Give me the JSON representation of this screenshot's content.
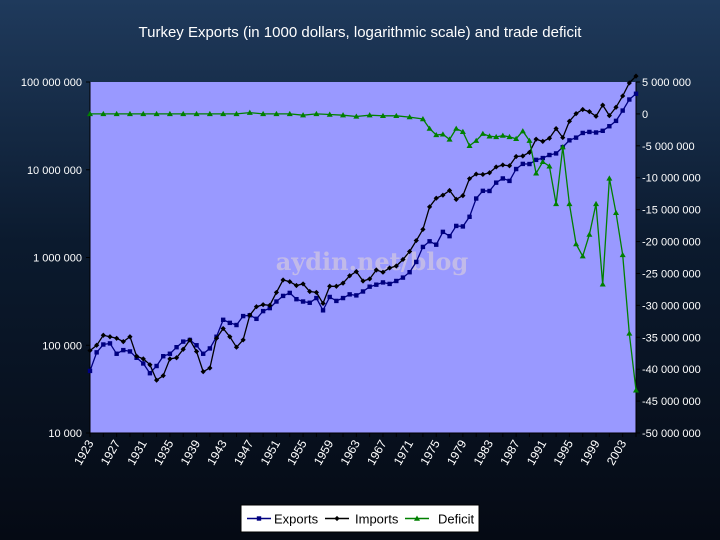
{
  "chart_data": {
    "type": "line",
    "title": "Turkey Exports (in 1000 dollars, logarithmic scale) and trade deficit",
    "watermark": "aydin.net/blog",
    "y_left": {
      "scale": "log",
      "range": [
        10000,
        100000000
      ],
      "ticks": [
        10000,
        100000,
        1000000,
        10000000,
        100000000
      ],
      "tick_labels": [
        "10 000",
        "100 000",
        "1 000 000",
        "10 000 000",
        "100 000 000"
      ]
    },
    "y_right": {
      "scale": "linear",
      "range": [
        -50000000,
        5000000
      ],
      "ticks": [
        5000000,
        0,
        -5000000,
        -10000000,
        -15000000,
        -20000000,
        -25000000,
        -30000000,
        -35000000,
        -40000000,
        -45000000,
        -50000000
      ],
      "tick_labels": [
        "5 000 000",
        "0",
        "-5 000 000",
        "-10 000 000",
        "-15 000 000",
        "-20 000 000",
        "-25 000 000",
        "-30 000 000",
        "-35 000 000",
        "-40 000 000",
        "-45 000 000",
        "-50 000 000"
      ]
    },
    "x_range": [
      1923,
      2005
    ],
    "x_tick_labels": [
      "1923",
      "1927",
      "1931",
      "1935",
      "1939",
      "1943",
      "1947",
      "1951",
      "1955",
      "1959",
      "1963",
      "1967",
      "1971",
      "1975",
      "1979",
      "1983",
      "1987",
      "1991",
      "1995",
      "1999",
      "2003"
    ],
    "grid": false,
    "legend": "bottom",
    "colors": {
      "plot_background": "#9999ff",
      "exports": "#000080",
      "imports": "#000000",
      "deficit": "#008000"
    },
    "series": [
      {
        "name": "Exports",
        "axis": "left",
        "marker": "square",
        "points": [
          [
            1923,
            51000
          ],
          [
            1924,
            83000
          ],
          [
            1925,
            102000
          ],
          [
            1926,
            105000
          ],
          [
            1927,
            80000
          ],
          [
            1928,
            88000
          ],
          [
            1929,
            85000
          ],
          [
            1930,
            72000
          ],
          [
            1931,
            62000
          ],
          [
            1932,
            48000
          ],
          [
            1933,
            58000
          ],
          [
            1934,
            75000
          ],
          [
            1935,
            80000
          ],
          [
            1936,
            95000
          ],
          [
            1937,
            110000
          ],
          [
            1938,
            115000
          ],
          [
            1939,
            100000
          ],
          [
            1940,
            80000
          ],
          [
            1941,
            92000
          ],
          [
            1942,
            125000
          ],
          [
            1943,
            195000
          ],
          [
            1944,
            180000
          ],
          [
            1945,
            170000
          ],
          [
            1946,
            215000
          ],
          [
            1947,
            220000
          ],
          [
            1948,
            200000
          ],
          [
            1949,
            245000
          ],
          [
            1950,
            265000
          ],
          [
            1951,
            315000
          ],
          [
            1952,
            365000
          ],
          [
            1953,
            395000
          ],
          [
            1954,
            335000
          ],
          [
            1955,
            315000
          ],
          [
            1956,
            305000
          ],
          [
            1957,
            345000
          ],
          [
            1958,
            250000
          ],
          [
            1959,
            355000
          ],
          [
            1960,
            320000
          ],
          [
            1961,
            345000
          ],
          [
            1962,
            380000
          ],
          [
            1963,
            370000
          ],
          [
            1964,
            410000
          ],
          [
            1965,
            465000
          ],
          [
            1966,
            490000
          ],
          [
            1967,
            520000
          ],
          [
            1968,
            500000
          ],
          [
            1969,
            540000
          ],
          [
            1970,
            590000
          ],
          [
            1971,
            680000
          ],
          [
            1972,
            890000
          ],
          [
            1973,
            1320000
          ],
          [
            1974,
            1530000
          ],
          [
            1975,
            1400000
          ],
          [
            1976,
            1960000
          ],
          [
            1977,
            1750000
          ],
          [
            1978,
            2290000
          ],
          [
            1979,
            2260000
          ],
          [
            1980,
            2910000
          ],
          [
            1981,
            4700000
          ],
          [
            1982,
            5750000
          ],
          [
            1983,
            5730000
          ],
          [
            1984,
            7130000
          ],
          [
            1985,
            7960000
          ],
          [
            1986,
            7460000
          ],
          [
            1987,
            10190000
          ],
          [
            1988,
            11660000
          ],
          [
            1989,
            11620000
          ],
          [
            1990,
            12960000
          ],
          [
            1991,
            13590000
          ],
          [
            1992,
            14720000
          ],
          [
            1993,
            15350000
          ],
          [
            1994,
            18110000
          ],
          [
            1995,
            21640000
          ],
          [
            1996,
            23220000
          ],
          [
            1997,
            26260000
          ],
          [
            1998,
            26970000
          ],
          [
            1999,
            26590000
          ],
          [
            2000,
            27780000
          ],
          [
            2001,
            31330000
          ],
          [
            2002,
            36060000
          ],
          [
            2003,
            47250000
          ],
          [
            2004,
            63170000
          ],
          [
            2005,
            73480000
          ]
        ]
      },
      {
        "name": "Imports",
        "axis": "left",
        "marker": "diamond",
        "points": [
          [
            1923,
            87000
          ],
          [
            1924,
            100000
          ],
          [
            1925,
            130000
          ],
          [
            1926,
            125000
          ],
          [
            1927,
            120000
          ],
          [
            1928,
            110000
          ],
          [
            1929,
            125000
          ],
          [
            1930,
            75000
          ],
          [
            1931,
            70000
          ],
          [
            1932,
            60000
          ],
          [
            1933,
            40000
          ],
          [
            1934,
            45000
          ],
          [
            1935,
            70000
          ],
          [
            1936,
            72000
          ],
          [
            1937,
            90000
          ],
          [
            1938,
            115000
          ],
          [
            1939,
            85000
          ],
          [
            1940,
            50000
          ],
          [
            1941,
            55000
          ],
          [
            1942,
            120000
          ],
          [
            1943,
            155000
          ],
          [
            1944,
            125000
          ],
          [
            1945,
            95000
          ],
          [
            1946,
            115000
          ],
          [
            1947,
            220000
          ],
          [
            1948,
            275000
          ],
          [
            1949,
            290000
          ],
          [
            1950,
            285000
          ],
          [
            1951,
            400000
          ],
          [
            1952,
            555000
          ],
          [
            1953,
            530000
          ],
          [
            1954,
            480000
          ],
          [
            1955,
            500000
          ],
          [
            1956,
            410000
          ],
          [
            1957,
            400000
          ],
          [
            1958,
            300000
          ],
          [
            1959,
            470000
          ],
          [
            1960,
            470000
          ],
          [
            1961,
            510000
          ],
          [
            1962,
            620000
          ],
          [
            1963,
            690000
          ],
          [
            1964,
            540000
          ],
          [
            1965,
            570000
          ],
          [
            1966,
            720000
          ],
          [
            1967,
            680000
          ],
          [
            1968,
            760000
          ],
          [
            1969,
            800000
          ],
          [
            1970,
            950000
          ],
          [
            1971,
            1170000
          ],
          [
            1972,
            1560000
          ],
          [
            1973,
            2090000
          ],
          [
            1974,
            3780000
          ],
          [
            1975,
            4740000
          ],
          [
            1976,
            5130000
          ],
          [
            1977,
            5800000
          ],
          [
            1978,
            4600000
          ],
          [
            1979,
            5070000
          ],
          [
            1980,
            7910000
          ],
          [
            1981,
            8930000
          ],
          [
            1982,
            8840000
          ],
          [
            1983,
            9240000
          ],
          [
            1984,
            10760000
          ],
          [
            1985,
            11340000
          ],
          [
            1986,
            11100000
          ],
          [
            1987,
            14160000
          ],
          [
            1988,
            14340000
          ],
          [
            1989,
            15790000
          ],
          [
            1990,
            22300000
          ],
          [
            1991,
            21050000
          ],
          [
            1992,
            22870000
          ],
          [
            1993,
            29430000
          ],
          [
            1994,
            23270000
          ],
          [
            1995,
            35710000
          ],
          [
            1996,
            43630000
          ],
          [
            1997,
            48560000
          ],
          [
            1998,
            45920000
          ],
          [
            1999,
            40670000
          ],
          [
            2000,
            54500000
          ],
          [
            2001,
            41400000
          ],
          [
            2002,
            51550000
          ],
          [
            2003,
            69340000
          ],
          [
            2004,
            97540000
          ],
          [
            2005,
            116770000
          ]
        ]
      },
      {
        "name": "Deficit",
        "axis": "right",
        "marker": "triangle",
        "points": [
          [
            1923,
            0
          ],
          [
            1925,
            0
          ],
          [
            1927,
            0
          ],
          [
            1929,
            0
          ],
          [
            1931,
            0
          ],
          [
            1933,
            0
          ],
          [
            1935,
            0
          ],
          [
            1937,
            0
          ],
          [
            1939,
            0
          ],
          [
            1941,
            0
          ],
          [
            1943,
            0
          ],
          [
            1945,
            0
          ],
          [
            1947,
            200000
          ],
          [
            1949,
            0
          ],
          [
            1951,
            0
          ],
          [
            1953,
            0
          ],
          [
            1955,
            -200000
          ],
          [
            1957,
            0
          ],
          [
            1959,
            -100000
          ],
          [
            1961,
            -200000
          ],
          [
            1963,
            -400000
          ],
          [
            1965,
            -200000
          ],
          [
            1967,
            -300000
          ],
          [
            1969,
            -300000
          ],
          [
            1971,
            -500000
          ],
          [
            1973,
            -800000
          ],
          [
            1974,
            -2300000
          ],
          [
            1975,
            -3300000
          ],
          [
            1976,
            -3200000
          ],
          [
            1977,
            -4000000
          ],
          [
            1978,
            -2300000
          ],
          [
            1979,
            -2800000
          ],
          [
            1980,
            -5000000
          ],
          [
            1981,
            -4200000
          ],
          [
            1982,
            -3100000
          ],
          [
            1983,
            -3500000
          ],
          [
            1984,
            -3600000
          ],
          [
            1985,
            -3400000
          ],
          [
            1986,
            -3600000
          ],
          [
            1987,
            -3900000
          ],
          [
            1988,
            -2700000
          ],
          [
            1989,
            -4200000
          ],
          [
            1990,
            -9300000
          ],
          [
            1991,
            -7500000
          ],
          [
            1992,
            -8200000
          ],
          [
            1993,
            -14100000
          ],
          [
            1994,
            -5200000
          ],
          [
            1995,
            -14100000
          ],
          [
            1996,
            -20400000
          ],
          [
            1997,
            -22300000
          ],
          [
            1998,
            -18900000
          ],
          [
            1999,
            -14100000
          ],
          [
            2000,
            -26700000
          ],
          [
            2001,
            -10100000
          ],
          [
            2002,
            -15500000
          ],
          [
            2003,
            -22100000
          ],
          [
            2004,
            -34400000
          ],
          [
            2005,
            -43300000
          ]
        ]
      }
    ]
  }
}
